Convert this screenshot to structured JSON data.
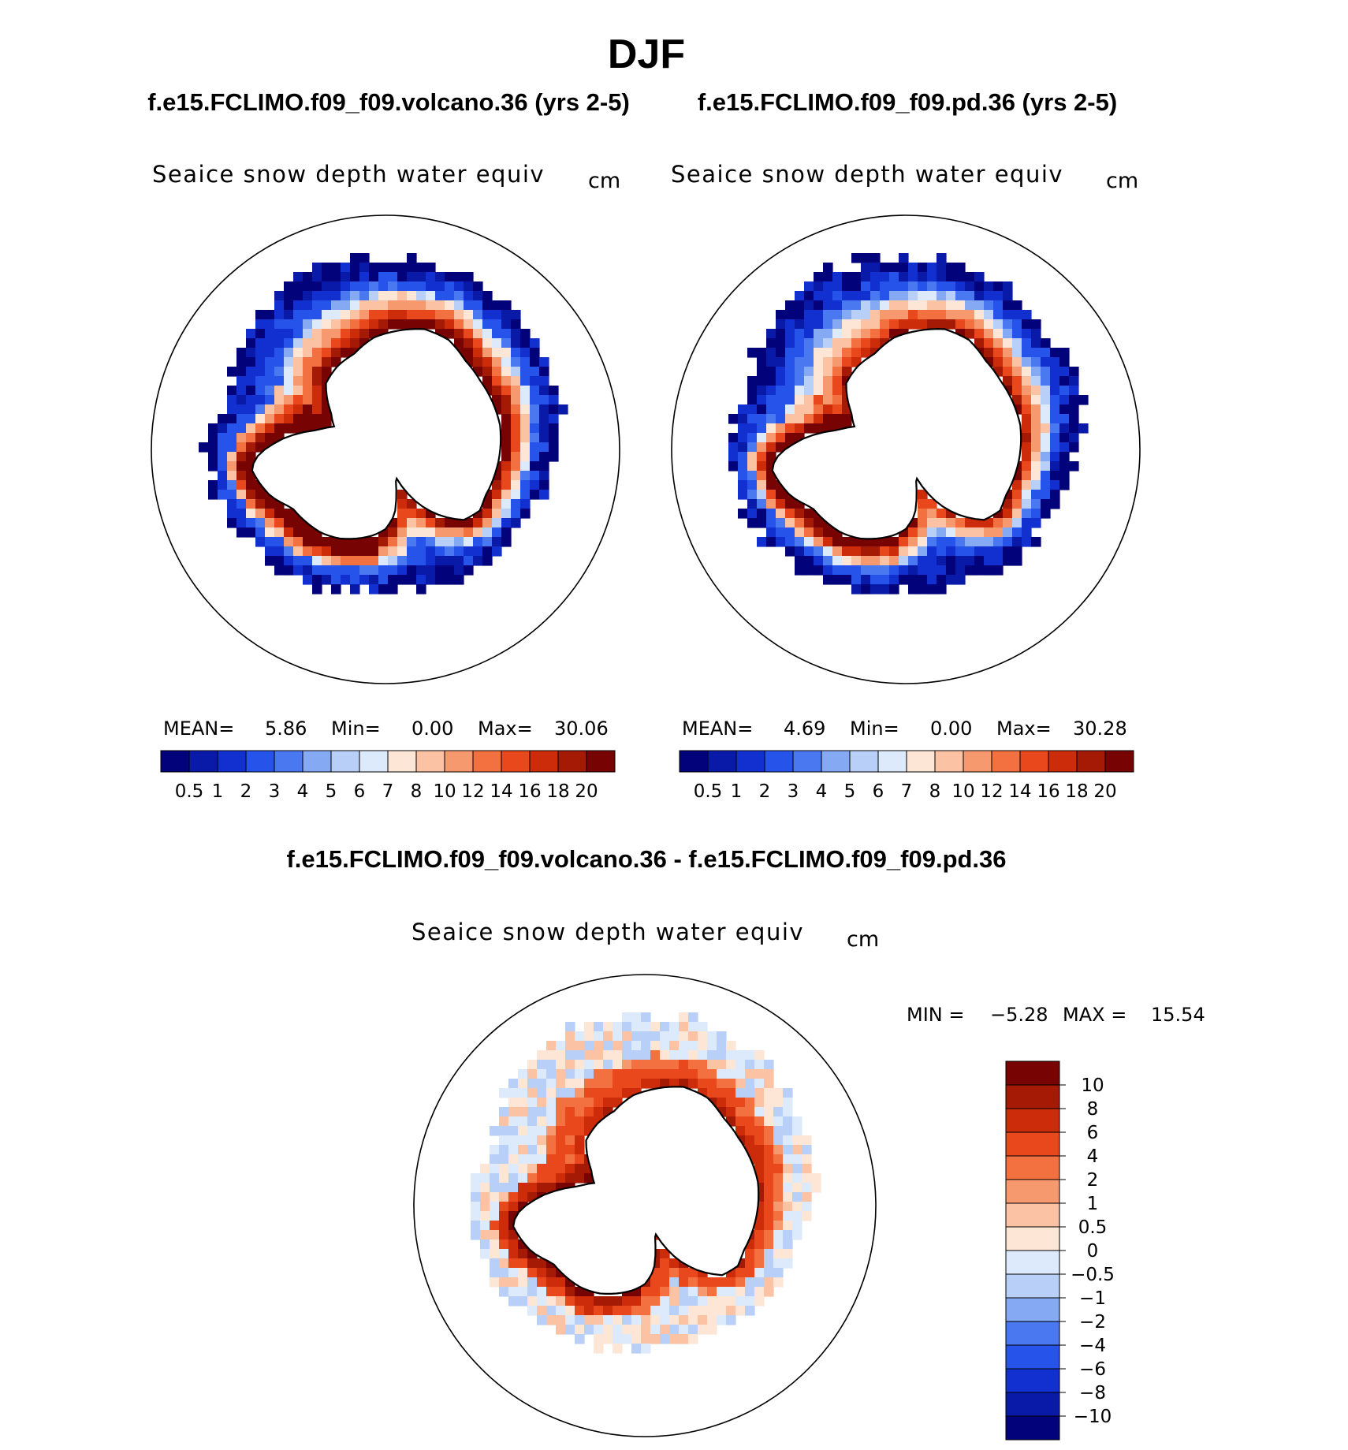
{
  "figure": {
    "season_title": "DJF",
    "panels": [
      {
        "case_title": "f.e15.FCLIMO.f09_f09.volcano.36 (yrs 2-5)",
        "variable": "Seaice snow depth water equiv",
        "units": "cm",
        "stats": {
          "mean_label": "MEAN=",
          "mean": "5.86",
          "min_label": "Min=",
          "min": "0.00",
          "max_label": "Max=",
          "max": "30.06"
        },
        "pack_scale": 1.25
      },
      {
        "case_title": "f.e15.FCLIMO.f09_f09.pd.36 (yrs 2-5)",
        "variable": "Seaice snow depth water equiv",
        "units": "cm",
        "stats": {
          "mean_label": "MEAN=",
          "mean": "4.69",
          "min_label": "Min=",
          "min": "0.00",
          "max_label": "Max=",
          "max": "30.28"
        },
        "pack_scale": 1.0
      }
    ],
    "difference": {
      "title": "f.e15.FCLIMO.f09_f09.volcano.36 - f.e15.FCLIMO.f09_f09.pd.36",
      "variable": "Seaice snow depth water equiv",
      "units": "cm",
      "min_label": "MIN =",
      "min": "−5.28",
      "max_label": "MAX =",
      "max": "15.54"
    }
  },
  "colorbars": {
    "abs": {
      "labels": [
        "0.5",
        "1",
        "2",
        "3",
        "4",
        "5",
        "6",
        "7",
        "8",
        "10",
        "12",
        "14",
        "16",
        "18",
        "20"
      ],
      "colors": [
        "#02027a",
        "#0a1aa8",
        "#1230d0",
        "#2653ea",
        "#4a78f0",
        "#86a9f4",
        "#b8cff8",
        "#ddeafc",
        "#fde6d6",
        "#fbc2a4",
        "#f7996e",
        "#f37140",
        "#e8481c",
        "#cc2c0a",
        "#a51a04",
        "#780303"
      ]
    },
    "diff": {
      "labels": [
        "10",
        "8",
        "6",
        "4",
        "2",
        "1",
        "0.5",
        "0",
        "−0.5",
        "−1",
        "−2",
        "−4",
        "−6",
        "−8",
        "−10"
      ],
      "colors": [
        "#780303",
        "#a51a04",
        "#cc2c0a",
        "#e8481c",
        "#f37140",
        "#f7996e",
        "#fbc2a4",
        "#fde6d6",
        "#ddeafc",
        "#b8cff8",
        "#86a9f4",
        "#4a78f0",
        "#2653ea",
        "#1230d0",
        "#0a1aa8",
        "#02027a"
      ]
    }
  }
}
